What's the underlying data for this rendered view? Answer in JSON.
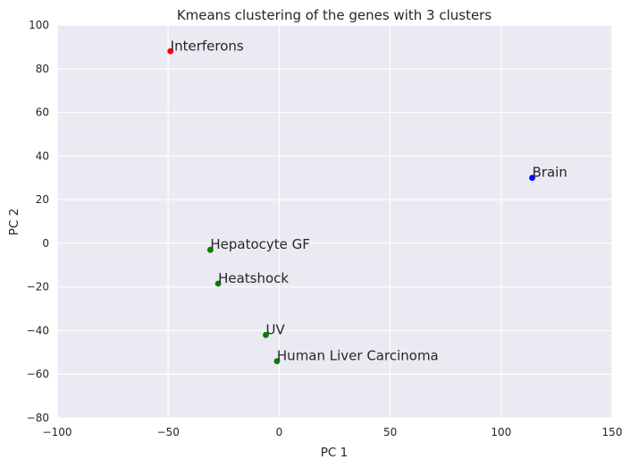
{
  "chart_data": {
    "type": "scatter",
    "title": "Kmeans clustering of the genes with 3 clusters",
    "xlabel": "PC 1",
    "ylabel": "PC 2",
    "xlim": [
      -100,
      150
    ],
    "ylim": [
      -80,
      100
    ],
    "xticks": [
      -100,
      -50,
      0,
      50,
      100,
      150
    ],
    "yticks": [
      -80,
      -60,
      -40,
      -20,
      0,
      20,
      40,
      60,
      80,
      100
    ],
    "xtick_labels": [
      "−100",
      "−50",
      "0",
      "50",
      "100",
      "150"
    ],
    "ytick_labels": [
      "−80",
      "−60",
      "−40",
      "−20",
      "0",
      "20",
      "40",
      "60",
      "80",
      "100"
    ],
    "grid": true,
    "background_color": "#eaeaf2",
    "grid_color": "#ffffff",
    "points": [
      {
        "label": "Interferons",
        "x": -49,
        "y": 88,
        "color": "#ff0000"
      },
      {
        "label": "Brain",
        "x": 114,
        "y": 30,
        "color": "#0000ff"
      },
      {
        "label": "Hepatocyte GF",
        "x": -31,
        "y": -3,
        "color": "#007f00"
      },
      {
        "label": "Heatshock",
        "x": -27.5,
        "y": -18.5,
        "color": "#007f00"
      },
      {
        "label": "UV",
        "x": -6,
        "y": -42,
        "color": "#007f00"
      },
      {
        "label": "Human Liver Carcinoma",
        "x": -1,
        "y": -54,
        "color": "#007f00"
      }
    ]
  }
}
